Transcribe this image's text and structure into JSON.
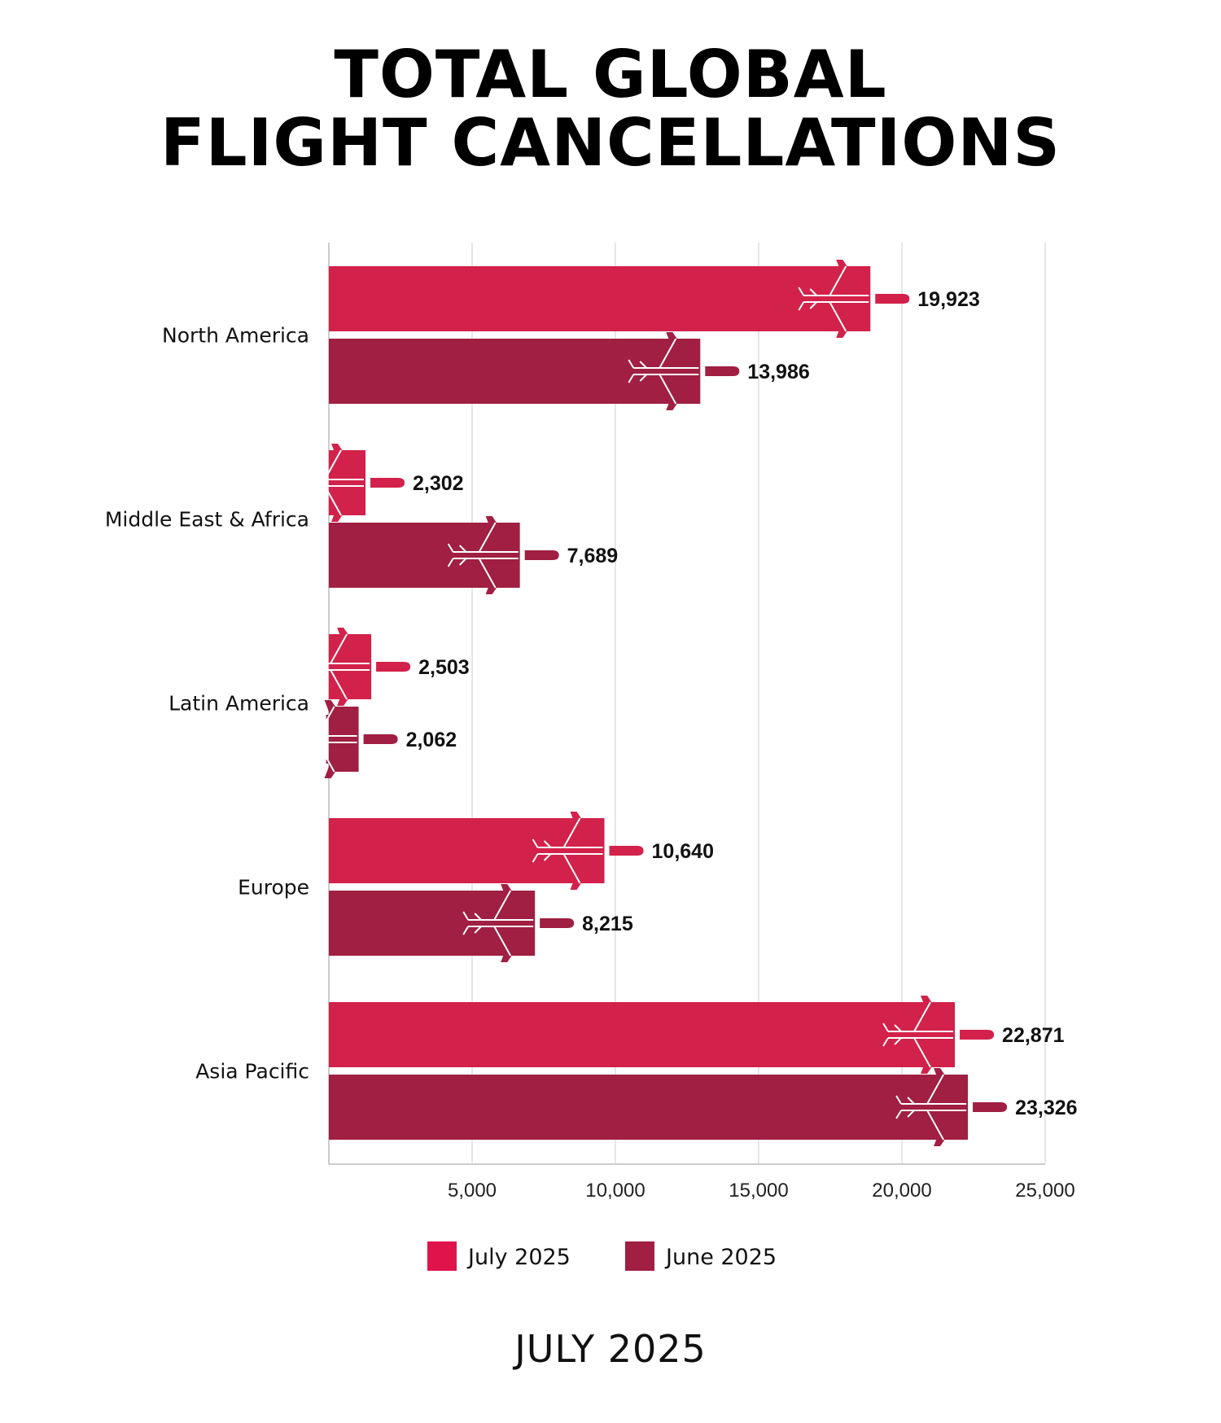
{
  "title_lines": [
    "TOTAL GLOBAL",
    "FLIGHT CANCELLATIONS"
  ],
  "footer": "JULY 2025",
  "colors": {
    "july": "#D2214A",
    "june": "#A01F42"
  },
  "icon": "airplane-icon",
  "chart_data": {
    "type": "bar",
    "orientation": "horizontal",
    "title": "TOTAL GLOBAL FLIGHT CANCELLATIONS",
    "categories": [
      "North America",
      "Middle East & Africa",
      "Latin America",
      "Europe",
      "Asia Pacific"
    ],
    "series": [
      {
        "name": "July 2025",
        "values": [
          19923,
          2302,
          2503,
          10640,
          22871
        ],
        "labels": [
          "19,923",
          "2,302",
          "2,503",
          "10,640",
          "22,871"
        ]
      },
      {
        "name": "June 2025",
        "values": [
          13986,
          7689,
          2062,
          8215,
          23326
        ],
        "labels": [
          "13,986",
          "7,689",
          "2,062",
          "8,215",
          "23,326"
        ]
      }
    ],
    "xlim": [
      0,
      25000
    ],
    "xticks": [
      5000,
      10000,
      15000,
      20000,
      25000
    ],
    "xtick_labels": [
      "5,000",
      "10,000",
      "15,000",
      "20,000",
      "25,000"
    ],
    "grid": true,
    "legend_position": "bottom"
  }
}
